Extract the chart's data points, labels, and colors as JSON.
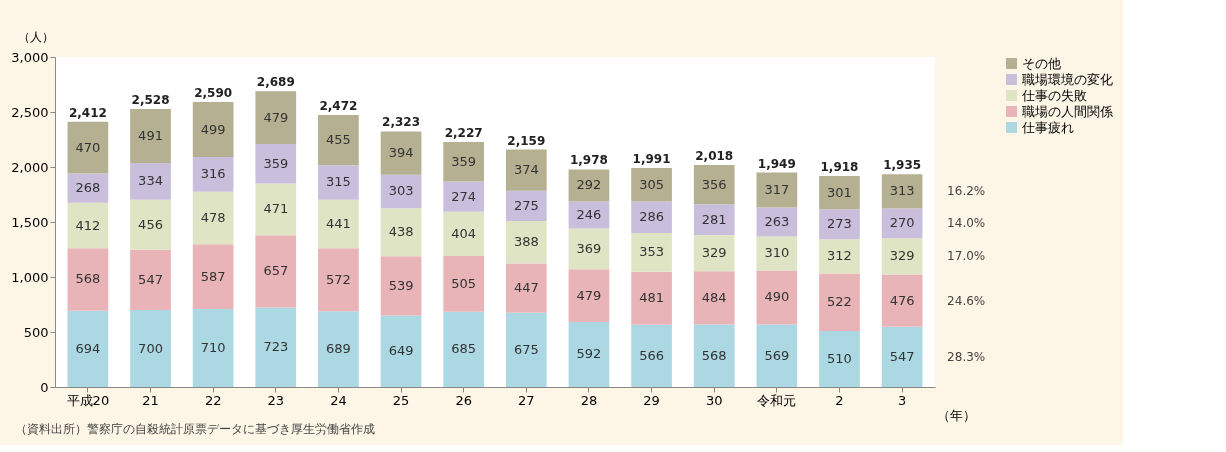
{
  "chart_data": {
    "type": "bar",
    "stacked": true,
    "xlabel": "（年）",
    "ylabel": "（人）",
    "categories": [
      "平成20",
      "21",
      "22",
      "23",
      "24",
      "25",
      "26",
      "27",
      "28",
      "29",
      "30",
      "令和元",
      "2",
      "3"
    ],
    "series": [
      {
        "name": "仕事疲れ",
        "color": "#acd8e4",
        "values": [
          694,
          700,
          710,
          723,
          689,
          649,
          685,
          675,
          592,
          566,
          568,
          569,
          510,
          547
        ]
      },
      {
        "name": "職場の人間関係",
        "color": "#e8b4b8",
        "values": [
          568,
          547,
          587,
          657,
          572,
          539,
          505,
          447,
          479,
          481,
          484,
          490,
          522,
          476
        ]
      },
      {
        "name": "仕事の失敗",
        "color": "#dfe5c4",
        "values": [
          412,
          456,
          478,
          471,
          441,
          438,
          404,
          388,
          369,
          353,
          329,
          310,
          312,
          329
        ]
      },
      {
        "name": "職場環境の変化",
        "color": "#c9bfdc",
        "values": [
          268,
          334,
          316,
          359,
          315,
          303,
          274,
          275,
          246,
          286,
          281,
          263,
          273,
          270
        ]
      },
      {
        "name": "その他",
        "color": "#b5b092",
        "values": [
          470,
          491,
          499,
          479,
          455,
          394,
          359,
          374,
          292,
          305,
          356,
          317,
          301,
          313
        ]
      }
    ],
    "totals": [
      "2,412",
      "2,528",
      "2,590",
      "2,689",
      "2,472",
      "2,323",
      "2,227",
      "2,159",
      "1,978",
      "1,991",
      "2,018",
      "1,949",
      "1,918",
      "1,935"
    ],
    "data_labels": true,
    "ylim": [
      0,
      3000
    ],
    "yticks": [
      0,
      500,
      {
        "value": 1000,
        "label": "1,000"
      },
      {
        "value": 1500,
        "label": "1,500"
      },
      {
        "value": 2000,
        "label": "2,000"
      },
      {
        "value": 2500,
        "label": "2,500"
      },
      {
        "value": 3000,
        "label": "3,000"
      }
    ],
    "grid": false,
    "legend": "top right",
    "annotations": [
      "28.3%",
      "24.6%",
      "17.0%",
      "14.0%",
      "16.2%",
      "（資料出所）警察庁の自殺統計原票データに基づき厚生労働省作成"
    ]
  }
}
